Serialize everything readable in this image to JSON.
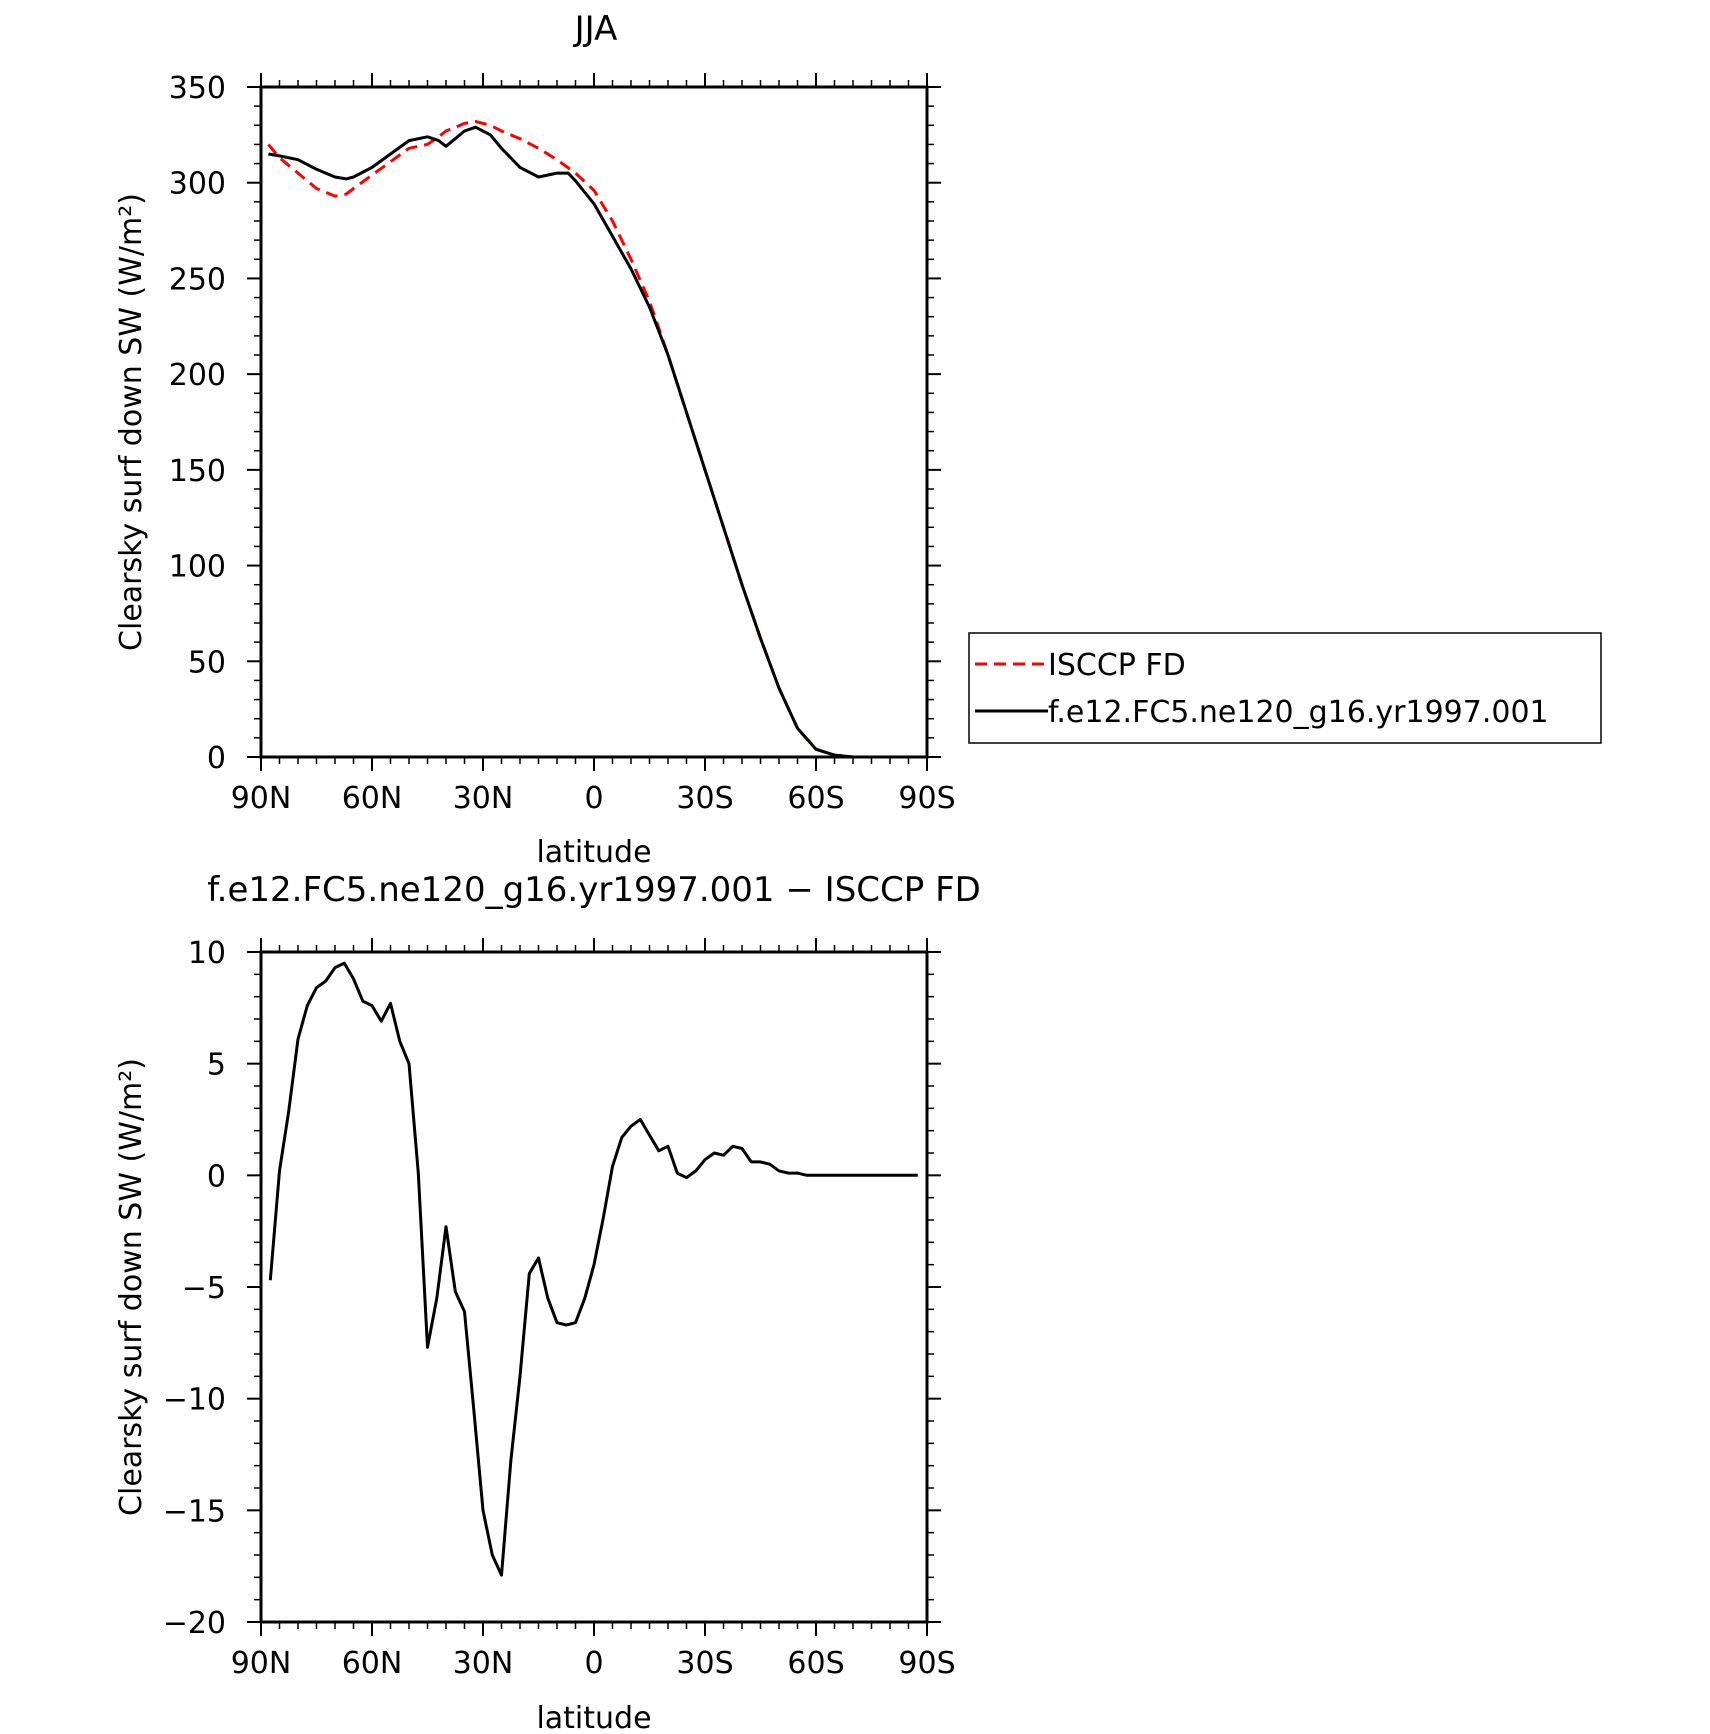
{
  "chart_data": [
    {
      "type": "line",
      "title": "JJA",
      "xlabel": "latitude",
      "ylabel": "Clearsky surf down SW (W/m²)",
      "xlim": [
        90,
        -90
      ],
      "ylim": [
        0,
        350
      ],
      "xticks": [
        90,
        60,
        30,
        0,
        -30,
        -60,
        -90
      ],
      "xtick_labels": [
        "90N",
        "60N",
        "30N",
        "0",
        "30S",
        "60S",
        "90S"
      ],
      "yticks": [
        0,
        50,
        100,
        150,
        200,
        250,
        300,
        350
      ],
      "ytick_labels": [
        "0",
        "50",
        "100",
        "150",
        "200",
        "250",
        "300",
        "350"
      ],
      "legend_position": "right",
      "series": [
        {
          "name": "ISCCP FD",
          "color": "#ff0000",
          "dash": "dashed",
          "x": [
            88,
            85,
            80,
            75,
            70,
            67,
            65,
            60,
            55,
            50,
            45,
            42,
            40,
            35,
            32,
            28,
            25,
            20,
            15,
            10,
            5,
            0,
            -5,
            -10,
            -15,
            -20,
            -25,
            -30,
            -35,
            -40,
            -45,
            -50,
            -55,
            -60,
            -65,
            -70,
            -75,
            -80,
            -85,
            -89
          ],
          "y": [
            320,
            313,
            305,
            297,
            293,
            294,
            297,
            304,
            311,
            318,
            320,
            324,
            327,
            331,
            332,
            330,
            327,
            323,
            318,
            312,
            305,
            296,
            280,
            260,
            238,
            210,
            180,
            150,
            120,
            90,
            62,
            36,
            15,
            4,
            1,
            0,
            0,
            0,
            0,
            0
          ]
        },
        {
          "name": "f.e12.FC5.ne120_g16.yr1997.001",
          "color": "#000000",
          "dash": "solid",
          "x": [
            88,
            85,
            80,
            75,
            70,
            67,
            65,
            60,
            55,
            50,
            45,
            42,
            40,
            35,
            32,
            28,
            25,
            20,
            15,
            10,
            7,
            5,
            0,
            -5,
            -10,
            -15,
            -20,
            -25,
            -30,
            -35,
            -40,
            -45,
            -50,
            -55,
            -60,
            -65,
            -70,
            -75,
            -80,
            -85,
            -89
          ],
          "y": [
            315,
            314,
            312,
            307,
            303,
            302,
            303,
            308,
            315,
            322,
            324,
            322,
            319,
            327,
            329,
            325,
            318,
            308,
            303,
            305,
            305,
            301,
            289,
            272,
            255,
            235,
            210,
            180,
            150,
            120,
            90,
            62,
            36,
            15,
            4,
            1,
            0,
            0,
            0,
            0,
            0
          ]
        }
      ]
    },
    {
      "type": "line",
      "title": "f.e12.FC5.ne120_g16.yr1997.001 − ISCCP FD",
      "xlabel": "latitude",
      "ylabel": "Clearsky surf down SW (W/m²)",
      "xlim": [
        90,
        -90
      ],
      "ylim": [
        -20,
        10
      ],
      "xticks": [
        90,
        60,
        30,
        0,
        -30,
        -60,
        -90
      ],
      "xtick_labels": [
        "90N",
        "60N",
        "30N",
        "0",
        "30S",
        "60S",
        "90S"
      ],
      "yticks": [
        -20,
        -15,
        -10,
        -5,
        0,
        5,
        10
      ],
      "ytick_labels": [
        "−20",
        "−15",
        "−10",
        "−5",
        "0",
        "5",
        "10"
      ],
      "series": [
        {
          "color": "#000000",
          "dash": "solid",
          "x": [
            87.5,
            85,
            82.5,
            80,
            77.5,
            75,
            72.5,
            70,
            67.5,
            65,
            62.5,
            60,
            57.5,
            55,
            52.5,
            50,
            47.5,
            45,
            42.5,
            40,
            37.5,
            35,
            32.5,
            30,
            27.5,
            25,
            22.5,
            20,
            17.5,
            15,
            12.5,
            10,
            7.5,
            5,
            2.5,
            0,
            -2.5,
            -5,
            -7.5,
            -10,
            -12.5,
            -15,
            -17.5,
            -20,
            -22.5,
            -25,
            -27.5,
            -30,
            -32.5,
            -35,
            -37.5,
            -40,
            -42.5,
            -45,
            -47.5,
            -50,
            -52.5,
            -55,
            -57.5,
            -60,
            -62.5,
            -65,
            -67.5,
            -70,
            -72.5,
            -75,
            -77.5,
            -80,
            -82.5,
            -85,
            -87.5
          ],
          "y": [
            -4.7,
            0.2,
            2.9,
            6.1,
            7.6,
            8.4,
            8.7,
            9.3,
            9.5,
            8.8,
            7.8,
            7.6,
            6.9,
            7.7,
            6,
            5,
            0.1,
            -7.7,
            -5.5,
            -2.3,
            -5.2,
            -6.1,
            -10.5,
            -15,
            -17,
            -17.9,
            -12.8,
            -9,
            -4.4,
            -3.7,
            -5.5,
            -6.6,
            -6.7,
            -6.6,
            -5.5,
            -4,
            -1.9,
            0.4,
            1.7,
            2.2,
            2.5,
            1.8,
            1.1,
            1.3,
            0.1,
            -0.1,
            0.2,
            0.7,
            1,
            0.9,
            1.3,
            1.2,
            0.6,
            0.6,
            0.5,
            0.2,
            0.1,
            0.1,
            0,
            0,
            0,
            0,
            0,
            0,
            0,
            0,
            0,
            0,
            0,
            0,
            0
          ]
        }
      ]
    }
  ]
}
